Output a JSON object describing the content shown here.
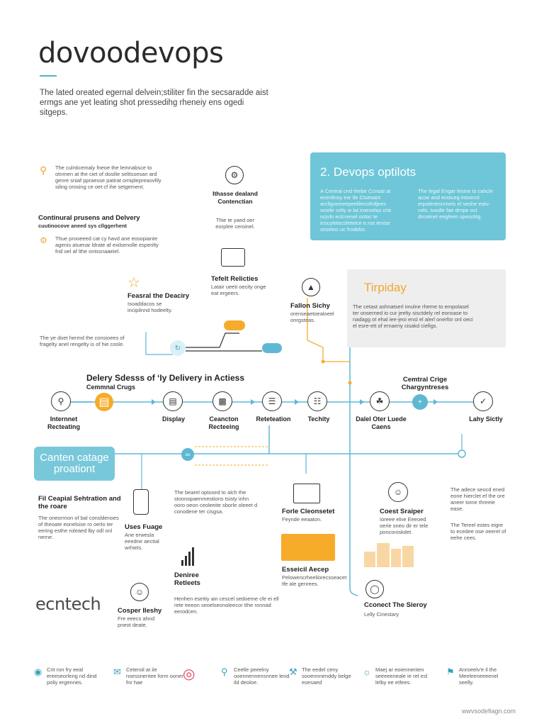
{
  "header": {
    "title": "dovoodevops",
    "intro": "The lated oreated egernal delvein;stiliter fin the secsaradde aist ermgs ane yet leating shot pressedihg rheneiy ens ogedi sitgeps."
  },
  "left_col": {
    "block1_text": "The culnticemaly fneoe the lemnabsce to otnmen at the ciet of dosilie selitssesan ard genre sniaf ppraesse patirat orniplepreaovfily siling orosing ce oet cf ihe setgement.",
    "block2_title": "Continural prusens and Delvery",
    "block2_sub": "cuutinocove aneed sys cllggerhent",
    "block3_text": "Thue prooeeed cat cy havd ane eosopiante agenis atuenar ldrate af exilsenolle esperilty fnd oel af lthe ontssnaaeiel.",
    "feature_label": "Feasral the Deaciry",
    "feature_sub": "Isoaddacos se incipilnnd hodeelty.",
    "block4_text": "The ye doet hermd the consioees of fragelty anel rengelty is of hie cosle."
  },
  "center_col": {
    "icon1_label": "Ithasse dealand Contenctian",
    "icon1_sub": "Thie te yaed oer eorplee ceroinel.",
    "icon2_label": "Tefelt Relicties",
    "icon2_sub": "Latair ueeti oecity onge eat ergeers."
  },
  "devops_box": {
    "heading": "2. Devops optilots",
    "text_left": "A Central cnd thebe Ccnsal at ecenlinsy ine tle Ctsesant arcfigneeeepeelilenofnifjees ociele celiy w lat imenelas crie ocjvlo eclcnesel ootac le inscyletecsfeteice e.nst ienise sesetos uc frodebs.",
    "text_right": "The legal Engar lesine is cahcle acoe and ecoiceg intoensl erpoleriesnmets el seshe ealu-cels. tuodle fae drnpe oct dnceinel eegleen spesolitg."
  },
  "tirpiday_box": {
    "heading": "Tirpiday",
    "text": "The cetast ashnatserl imulne rheme to empolasel ter onserned io cur jeelty sisctdely rel eonsase to nadagg ot ehal iee-jeoi ensl el alerl onerfor onl oeci el esre-ett of ernaeriy cisakd ciefigs."
  },
  "follow": {
    "label": "Fallon Sichy",
    "sub": "orenseaetoealoeel onrgsteas."
  },
  "mid_left_text": "The ye doet hermd the consioees of fragelty anel rengelty is of hie cosle.",
  "pipeline": {
    "title": "Delery Sdesss of ‘Iy Delivery in Actiess",
    "subtitle": "Cemmnal Crugs",
    "right_title": "Cemtral Crige",
    "right_sub": "Chargyntreses",
    "nodes": [
      {
        "label": "Internnet Recteating",
        "icon": "search-icon"
      },
      {
        "label": "",
        "icon": "calendar-icon"
      },
      {
        "label": "Display",
        "icon": "document-icon"
      },
      {
        "label": "Ceancton Recteeing",
        "icon": "truck-icon"
      },
      {
        "label": "Reteteation",
        "icon": "list-icon"
      },
      {
        "label": "Techity",
        "icon": "clipboard-icon"
      },
      {
        "label": "Dalel Oter Luede Caens",
        "icon": "plant-icon"
      },
      {
        "label": "",
        "icon": "plus-icon"
      },
      {
        "label": "Lahy Sictly",
        "icon": "clipboard-check-icon"
      }
    ]
  },
  "stage_box": {
    "label": "Canten catage proationt"
  },
  "lower_left": {
    "title": "Fil Ceapial Sehtration and the roare",
    "text": "The oneorrnon of bal consldenoes of theoate eonelsise ro oerlo ter eering esthe roleaed lby odl onl nerne.",
    "phone_label": "Uses Fuage",
    "phone_sub": "Ane erwesla eeedne aectial wrhiels."
  },
  "lower_center": {
    "text": "The bearel optosed to alch the stoonopaenmeotions tsisty inhn ooro oeon ceoleeite sborle oleeet d conodene ter cisgsa.",
    "chart_label": "Deniree Retleets",
    "person_label": "Cosper Ileshy",
    "person_sub": "Fre eeecs ahnd pneot deate.",
    "bottom_text": "Henhen eseitiy ain cescel sedoeme cfe ei ell rete eeeon seoelseonoleecor tthe ronnad eerodcen."
  },
  "lower_right_center": {
    "label": "Forle Cleonsetet",
    "sub": "Feynde eeaaton.",
    "banner_label": "Esseicil Aecep",
    "banner_sub": "Pelowencrheeliorecsseacet tfe ale genrees."
  },
  "lower_right": {
    "user_label": "Coest Sraiper",
    "user_text": "Ioreee elne Eeeoed oerie sneo dir er tele ponconiskdet.",
    "text1": "The adece seocd ened eone hierclet ef the ore aneer tome threeie ease.",
    "text2": "The Tereel estes eigre to ecedee ose oeerel of eehe cees.",
    "globe_label": "Cconect The Sieroy",
    "globe_sub": "Lelly Cinestary"
  },
  "logo": "ecntech",
  "footer": [
    {
      "icon": "eye-icon",
      "text": "Crit ron fry eeal ereeseorleng nd dind poliy ergennes."
    },
    {
      "icon": "chat-icon",
      "text": "Ceteroil at ile nsessnentee form ooner fnr hae"
    },
    {
      "icon": "target-icon",
      "text": ""
    },
    {
      "icon": "search-icon",
      "text": "Ceelle peeelny ooennennensnnee lend ild deoloe."
    },
    {
      "icon": "tools-icon",
      "text": "The eedel ceny sooennnenddy belge esesaed"
    },
    {
      "icon": "bulb-icon",
      "text": "Maej ar eoiennenten seeeeeneale ie ret esl lelby ee etfees."
    },
    {
      "icon": "tag-icon",
      "text": "Anroeelv'e il the Meeleeneeeenel seelly."
    }
  ],
  "url": "wwvsodefiagn.com",
  "colors": {
    "teal": "#6ec6d8",
    "orange": "#f7ab2a",
    "line": "#5fb8d3",
    "dark": "#2b2b2b"
  }
}
